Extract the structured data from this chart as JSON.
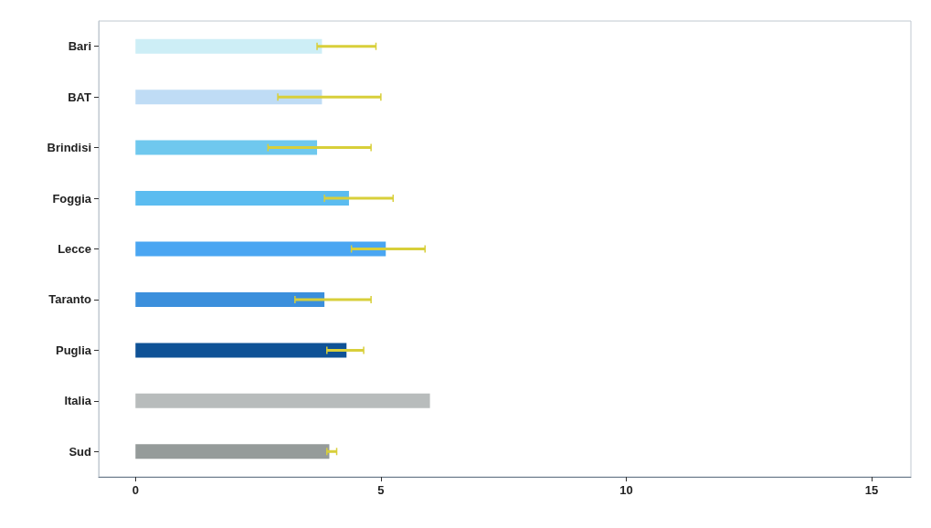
{
  "chart_data": {
    "type": "bar",
    "orientation": "horizontal",
    "categories": [
      "Bari",
      "BAT",
      "Brindisi",
      "Foggia",
      "Lecce",
      "Taranto",
      "Puglia",
      "Italia",
      "Sud"
    ],
    "values": [
      3.8,
      3.8,
      3.7,
      4.35,
      5.1,
      3.85,
      4.3,
      6.0,
      3.95
    ],
    "colors": [
      "#cdeef6",
      "#bfdcf5",
      "#6fc8ee",
      "#5bbcf0",
      "#4aa6f2",
      "#3b8fdc",
      "#0f5296",
      "#b8bcbc",
      "#959b9a"
    ],
    "errors": [
      [
        3.7,
        4.9
      ],
      [
        2.9,
        5.0
      ],
      [
        2.7,
        4.8
      ],
      [
        3.85,
        5.25
      ],
      [
        4.4,
        5.9
      ],
      [
        3.25,
        4.8
      ],
      [
        3.9,
        4.65
      ],
      null,
      [
        3.9,
        4.1
      ]
    ],
    "xlim": [
      -0.75,
      15.8
    ],
    "xticks": [
      0,
      5,
      10,
      15
    ]
  }
}
